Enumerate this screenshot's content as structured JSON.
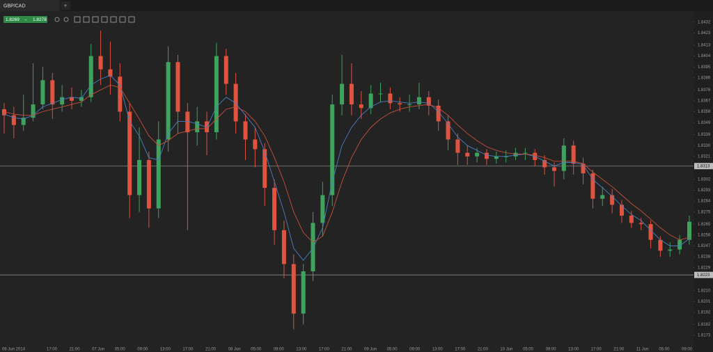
{
  "tab": {
    "title": "GBP/CAD"
  },
  "quote": {
    "bid": 1.8269,
    "ask": 1.8278
  },
  "chart_data": {
    "type": "candlestick",
    "up_color": "#3da35d",
    "down_color": "#e0533f",
    "ylim": [
      1.8165,
      1.844
    ],
    "yticks": [
      1.8432,
      1.8423,
      1.8413,
      1.8404,
      1.8395,
      1.8386,
      1.8376,
      1.8367,
      1.8358,
      1.8349,
      1.8339,
      {
        "value": 1.833,
        "label": "1.8330"
      },
      1.8321,
      1.8302,
      1.8293,
      1.8284,
      1.8275,
      1.8265,
      1.8256,
      1.8247,
      1.8238,
      1.8229,
      {
        "value": 1.821,
        "label": "1.8210"
      },
      1.8201,
      1.8192,
      1.8182,
      1.8173
    ],
    "price_lines": [
      1.8313,
      1.8223
    ],
    "xtick_labels": [
      "06 Jun 2014",
      "17:00",
      "21:00",
      "07 Jun",
      "05:00",
      "09:00",
      "13:00",
      "17:00",
      "21:00",
      "08 Jun",
      "05:00",
      "09:00",
      "13:00",
      "17:00",
      "21:00",
      "09 Jun",
      "05:00",
      "09:00",
      "13:00",
      "17:00",
      "21:00",
      "10 Jun",
      "05:00",
      "09:00",
      "13:00",
      "17:00",
      "21:00",
      "11 Jun",
      "05:00",
      "09:00"
    ],
    "open": [
      1.836,
      1.8355,
      1.8347,
      1.8353,
      1.8364,
      1.8384,
      1.8364,
      1.837,
      1.8367,
      1.837,
      1.8404,
      1.8393,
      1.8387,
      1.8358,
      1.8289,
      1.8318,
      1.8278,
      1.8335,
      1.8399,
      1.8358,
      1.8341,
      1.835,
      1.8341,
      1.8404,
      1.8381,
      1.835,
      1.8335,
      1.8327,
      1.8295,
      1.826,
      1.8232,
      1.8191,
      1.8226,
      1.8266,
      1.8289,
      1.8364,
      1.8381,
      1.8364,
      1.8361,
      1.8373,
      1.8373,
      1.8365,
      1.8364,
      1.8364,
      1.837,
      1.8363,
      1.835,
      1.8335,
      1.8324,
      1.8321,
      1.8324,
      1.8319,
      1.8321,
      1.8321,
      1.8324,
      1.8324,
      1.8318,
      1.8312,
      1.8309,
      1.833,
      1.8315,
      1.8307,
      1.8286,
      1.8289,
      1.8281,
      1.8272,
      1.8266,
      1.8265,
      1.8252,
      1.8243,
      1.8244,
      1.8252
    ],
    "high": [
      1.8365,
      1.8362,
      1.8372,
      1.8398,
      1.8395,
      1.839,
      1.838,
      1.8378,
      1.8376,
      1.8414,
      1.8425,
      1.8416,
      1.8398,
      1.8365,
      1.8345,
      1.8325,
      1.835,
      1.8412,
      1.8405,
      1.8365,
      1.8362,
      1.8358,
      1.8415,
      1.841,
      1.839,
      1.8356,
      1.8345,
      1.8332,
      1.8302,
      1.8268,
      1.824,
      1.8232,
      1.8275,
      1.83,
      1.8372,
      1.8405,
      1.8398,
      1.8375,
      1.838,
      1.8382,
      1.8378,
      1.837,
      1.8372,
      1.8382,
      1.8375,
      1.8368,
      1.8355,
      1.834,
      1.833,
      1.8328,
      1.8327,
      1.8325,
      1.8326,
      1.8328,
      1.8328,
      1.8327,
      1.8322,
      1.8316,
      1.8336,
      1.8334,
      1.832,
      1.831,
      1.8296,
      1.8294,
      1.8285,
      1.8276,
      1.827,
      1.8268,
      1.8255,
      1.825,
      1.8256,
      1.8272
    ],
    "low": [
      1.834,
      1.8336,
      1.8342,
      1.835,
      1.836,
      1.8352,
      1.8358,
      1.836,
      1.8362,
      1.8366,
      1.838,
      1.8372,
      1.835,
      1.827,
      1.8275,
      1.8262,
      1.827,
      1.8325,
      1.834,
      1.826,
      1.833,
      1.8322,
      1.8335,
      1.8372,
      1.834,
      1.8318,
      1.8312,
      1.828,
      1.8248,
      1.822,
      1.8178,
      1.8182,
      1.8218,
      1.8255,
      1.828,
      1.8355,
      1.8355,
      1.8352,
      1.8356,
      1.8366,
      1.836,
      1.8358,
      1.8358,
      1.836,
      1.8355,
      1.8342,
      1.8326,
      1.8314,
      1.8314,
      1.8316,
      1.8314,
      1.8315,
      1.8316,
      1.8318,
      1.8318,
      1.8313,
      1.8306,
      1.8296,
      1.8302,
      1.8306,
      1.8298,
      1.8278,
      1.828,
      1.8274,
      1.8266,
      1.8262,
      1.826,
      1.8245,
      1.8238,
      1.8238,
      1.824,
      1.8248
    ],
    "close": [
      1.8355,
      1.8347,
      1.8353,
      1.8364,
      1.8384,
      1.8364,
      1.837,
      1.8367,
      1.837,
      1.8404,
      1.8393,
      1.8387,
      1.8358,
      1.8289,
      1.8318,
      1.8278,
      1.8335,
      1.8399,
      1.8358,
      1.8341,
      1.835,
      1.8341,
      1.8404,
      1.8381,
      1.835,
      1.8335,
      1.8327,
      1.8295,
      1.826,
      1.8232,
      1.8191,
      1.8226,
      1.8266,
      1.8289,
      1.8364,
      1.8381,
      1.8364,
      1.8361,
      1.8373,
      1.8373,
      1.8365,
      1.8364,
      1.8364,
      1.837,
      1.8363,
      1.835,
      1.8335,
      1.8324,
      1.8321,
      1.8324,
      1.8319,
      1.8321,
      1.8321,
      1.8324,
      1.8324,
      1.8318,
      1.8312,
      1.8309,
      1.833,
      1.8315,
      1.8307,
      1.8286,
      1.8289,
      1.8281,
      1.8272,
      1.8266,
      1.8265,
      1.8252,
      1.8243,
      1.8244,
      1.8252,
      1.8267
    ],
    "moving_averages": [
      {
        "color": "#4a7fc1",
        "values": [
          1.8356,
          1.8353,
          1.8352,
          1.8355,
          1.8362,
          1.8365,
          1.8368,
          1.837,
          1.8369,
          1.838,
          1.8385,
          1.8388,
          1.838,
          1.835,
          1.8338,
          1.832,
          1.8318,
          1.834,
          1.835,
          1.835,
          1.8348,
          1.8345,
          1.8362,
          1.837,
          1.8365,
          1.8355,
          1.8345,
          1.8325,
          1.83,
          1.8275,
          1.8245,
          1.8235,
          1.8245,
          1.8262,
          1.83,
          1.833,
          1.8345,
          1.8355,
          1.8362,
          1.8366,
          1.8367,
          1.8366,
          1.8365,
          1.8366,
          1.8365,
          1.8358,
          1.8348,
          1.8337,
          1.833,
          1.8326,
          1.8322,
          1.8321,
          1.8321,
          1.8322,
          1.8323,
          1.8321,
          1.8317,
          1.8313,
          1.8316,
          1.8316,
          1.8314,
          1.8302,
          1.8295,
          1.8288,
          1.828,
          1.8273,
          1.8268,
          1.826,
          1.8252,
          1.8247,
          1.8247,
          1.8253
        ]
      },
      {
        "color": "#c8503c",
        "values": [
          1.8358,
          1.8356,
          1.8355,
          1.8355,
          1.8358,
          1.836,
          1.8362,
          1.8364,
          1.8366,
          1.8372,
          1.8376,
          1.838,
          1.8378,
          1.8365,
          1.8352,
          1.8338,
          1.833,
          1.8334,
          1.834,
          1.8342,
          1.8344,
          1.8344,
          1.8352,
          1.836,
          1.8362,
          1.8358,
          1.835,
          1.8338,
          1.832,
          1.83,
          1.8275,
          1.8258,
          1.825,
          1.8255,
          1.8275,
          1.83,
          1.832,
          1.8335,
          1.8345,
          1.8352,
          1.8357,
          1.836,
          1.8362,
          1.8363,
          1.8364,
          1.8361,
          1.8355,
          1.8347,
          1.834,
          1.8334,
          1.8329,
          1.8326,
          1.8324,
          1.8323,
          1.8323,
          1.8322,
          1.832,
          1.8317,
          1.8317,
          1.8317,
          1.8315,
          1.8308,
          1.8302,
          1.8296,
          1.8289,
          1.8282,
          1.8276,
          1.8269,
          1.8262,
          1.8256,
          1.8252,
          1.8254
        ]
      }
    ]
  }
}
